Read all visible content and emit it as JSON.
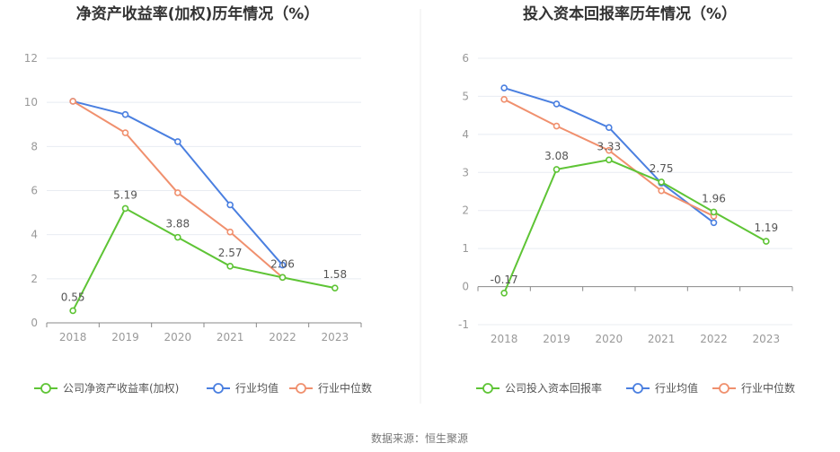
{
  "source_label": "数据来源：恒生聚源",
  "colors": {
    "company": "#5ec435",
    "avg": "#4a7fe0",
    "median": "#f0906e",
    "grid": "#e8ecf2",
    "axis": "#888888"
  },
  "chart_data": [
    {
      "type": "line",
      "title": "净资产收益率(加权)历年情况（%）",
      "categories": [
        "2018",
        "2019",
        "2020",
        "2021",
        "2022",
        "2023"
      ],
      "ylim": [
        0,
        12
      ],
      "yticks": [
        0,
        2,
        4,
        6,
        8,
        10,
        12
      ],
      "grid": true,
      "legend_position": "bottom",
      "series": [
        {
          "name": "公司净资产收益率(加权)",
          "key": "company",
          "values": [
            0.55,
            5.19,
            3.88,
            2.57,
            2.06,
            1.58
          ],
          "labels": [
            "0.55",
            "5.19",
            "3.88",
            "2.57",
            "2.06",
            "1.58"
          ]
        },
        {
          "name": "行业均值",
          "key": "avg",
          "values": [
            10.05,
            9.45,
            8.22,
            5.35,
            2.62,
            null
          ]
        },
        {
          "name": "行业中位数",
          "key": "median",
          "values": [
            10.05,
            8.62,
            5.9,
            4.12,
            2.06,
            null
          ]
        }
      ]
    },
    {
      "type": "line",
      "title": "投入资本回报率历年情况（%）",
      "categories": [
        "2018",
        "2019",
        "2020",
        "2021",
        "2022",
        "2023"
      ],
      "ylim": [
        -1,
        6
      ],
      "yticks": [
        -1,
        0,
        1,
        2,
        3,
        4,
        5,
        6
      ],
      "grid": true,
      "legend_position": "bottom",
      "series": [
        {
          "name": "公司投入资本回报率",
          "key": "company",
          "values": [
            -0.17,
            3.08,
            3.33,
            2.75,
            1.96,
            1.19
          ],
          "labels": [
            "-0.17",
            "3.08",
            "3.33",
            "2.75",
            "1.96",
            "1.19"
          ]
        },
        {
          "name": "行业均值",
          "key": "avg",
          "values": [
            5.22,
            4.8,
            4.18,
            2.72,
            1.68,
            null
          ]
        },
        {
          "name": "行业中位数",
          "key": "median",
          "values": [
            4.92,
            4.22,
            3.58,
            2.52,
            1.85,
            null
          ]
        }
      ]
    }
  ]
}
